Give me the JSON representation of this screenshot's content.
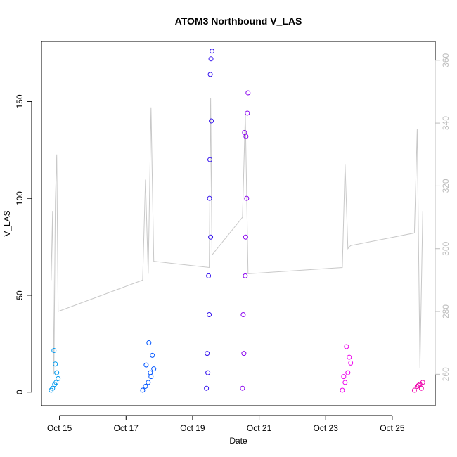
{
  "chart_data": {
    "type": "scatter",
    "title": "ATOM3 Northbound V_LAS",
    "xlabel": "Date",
    "ylabel": "V_LAS",
    "x_axis": {
      "type": "date",
      "range": [
        "2024-10-14T11:00",
        "2024-10-26T07:00"
      ],
      "ticks": [
        {
          "value": "2024-10-15",
          "label": "Oct 15"
        },
        {
          "value": "2024-10-17",
          "label": "Oct 17"
        },
        {
          "value": "2024-10-19",
          "label": "Oct 19"
        },
        {
          "value": "2024-10-21",
          "label": "Oct 21"
        },
        {
          "value": "2024-10-23",
          "label": "Oct 23"
        },
        {
          "value": "2024-10-25",
          "label": "Oct 25"
        }
      ]
    },
    "y_axis": {
      "range": [
        -7,
        181
      ],
      "ticks": [
        {
          "value": 0,
          "label": "0"
        },
        {
          "value": 50,
          "label": "50"
        },
        {
          "value": 100,
          "label": "100"
        },
        {
          "value": 150,
          "label": "150"
        }
      ]
    },
    "y2_axis": {
      "range": [
        250,
        366
      ],
      "ticks": [
        {
          "value": 260,
          "label": "260"
        },
        {
          "value": 280,
          "label": "280"
        },
        {
          "value": 300,
          "label": "300"
        },
        {
          "value": 320,
          "label": "320"
        },
        {
          "value": 340,
          "label": "340"
        },
        {
          "value": 360,
          "label": "360"
        }
      ]
    },
    "grid": false,
    "series": [
      {
        "kind": "points",
        "color": "#0099EE",
        "x": [
          "2024-10-14T18:00",
          "2024-10-14T19:00",
          "2024-10-14T20:00",
          "2024-10-14T21:00",
          "2024-10-14T22:00",
          "2024-10-14T23:00",
          "2024-10-14T20:30",
          "2024-10-14T21:30"
        ],
        "y": [
          1,
          2,
          21.5,
          14.5,
          10,
          7,
          4,
          5
        ]
      },
      {
        "kind": "points",
        "color": "#0055FF",
        "x": [
          "2024-10-17T12:00",
          "2024-10-17T14:00",
          "2024-10-17T16:00",
          "2024-10-17T18:00",
          "2024-10-17T20:00",
          "2024-10-17T14:30",
          "2024-10-17T16:30",
          "2024-10-17T19:00",
          "2024-10-17T17:30"
        ],
        "y": [
          1,
          3,
          5,
          8,
          12,
          14,
          25.5,
          19,
          10
        ]
      },
      {
        "kind": "points",
        "color": "#3311EE",
        "x": [
          "2024-10-19T10:00",
          "2024-10-19T11:00",
          "2024-10-19T12:00",
          "2024-10-19T13:00",
          "2024-10-19T12:30",
          "2024-10-19T13:30",
          "2024-10-19T12:45",
          "2024-10-19T13:15",
          "2024-10-19T14:00",
          "2024-10-19T11:30",
          "2024-10-19T10:30",
          "2024-10-19T12:15"
        ],
        "y": [
          2,
          10,
          40,
          80,
          120,
          140,
          164,
          172,
          176,
          60,
          20,
          100
        ]
      },
      {
        "kind": "points",
        "color": "#8800EE",
        "x": [
          "2024-10-20T12:00",
          "2024-10-20T13:00",
          "2024-10-20T14:00",
          "2024-10-20T15:00",
          "2024-10-20T14:30",
          "2024-10-20T13:30",
          "2024-10-20T15:30",
          "2024-10-20T16:00",
          "2024-10-20T12:30",
          "2024-10-20T14:15"
        ],
        "y": [
          2,
          20,
          60,
          100,
          132,
          134,
          144,
          154.5,
          40,
          80
        ]
      },
      {
        "kind": "points",
        "color": "#EE00EE",
        "x": [
          "2024-10-23T12:00",
          "2024-10-23T14:00",
          "2024-10-23T16:00",
          "2024-10-23T18:00",
          "2024-10-23T15:00",
          "2024-10-23T17:00",
          "2024-10-23T13:00"
        ],
        "y": [
          1,
          5,
          10,
          15,
          23.5,
          18,
          8
        ]
      },
      {
        "kind": "points",
        "color": "#EE00AA",
        "x": [
          "2024-10-25T16:00",
          "2024-10-25T18:00",
          "2024-10-25T20:00",
          "2024-10-25T22:00",
          "2024-10-25T19:00",
          "2024-10-25T21:00"
        ],
        "y": [
          1,
          3,
          4,
          5,
          3.5,
          2
        ]
      },
      {
        "kind": "line",
        "color": "#C8C8C8",
        "axis": "right",
        "x": [
          "2024-10-14T18:00",
          "2024-10-14T19:00",
          "2024-10-14T20:00",
          "2024-10-14T21:00",
          "2024-10-14T22:00",
          "2024-10-14T23:00",
          "2024-10-17T12:00",
          "2024-10-17T14:00",
          "2024-10-17T16:00",
          "2024-10-17T18:00",
          "2024-10-17T20:00",
          "2024-10-19T12:00",
          "2024-10-19T13:00",
          "2024-10-19T14:00",
          "2024-10-20T12:00",
          "2024-10-20T14:00",
          "2024-10-20T16:00",
          "2024-10-23T12:00",
          "2024-10-23T14:00",
          "2024-10-23T16:00",
          "2024-10-23T18:00",
          "2024-10-25T16:00",
          "2024-10-25T18:00",
          "2024-10-25T20:00",
          "2024-10-25T22:00"
        ],
        "y": [
          290,
          312,
          260,
          315,
          330,
          280,
          290,
          322,
          292,
          345,
          296,
          294,
          348,
          298,
          310,
          343,
          292,
          294,
          327,
          300,
          301,
          305,
          338,
          262,
          312
        ]
      }
    ]
  }
}
